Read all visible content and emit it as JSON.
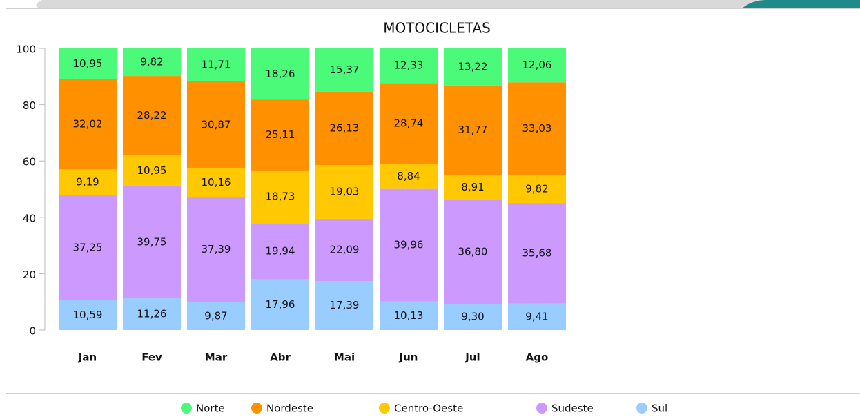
{
  "chart_data": {
    "type": "stacked_bar",
    "title": "MOTOCICLETAS",
    "categories": [
      "Jan",
      "Fev",
      "Mar",
      "Abr",
      "Mai",
      "Jun",
      "Jul",
      "Ago"
    ],
    "ylim": [
      0,
      100
    ],
    "yticks": [
      0,
      20,
      40,
      60,
      80,
      100
    ],
    "series": [
      {
        "name": "Norte",
        "color": "#4cfa7a",
        "values": [
          10.95,
          9.82,
          11.71,
          18.26,
          15.37,
          12.33,
          13.22,
          12.06
        ],
        "value_labels": [
          "10,95",
          "9,82",
          "11,71",
          "18,26",
          "15,37",
          "12,33",
          "13,22",
          "12,06"
        ]
      },
      {
        "name": "Nordeste",
        "color": "#ff9100",
        "values": [
          32.02,
          28.22,
          30.87,
          25.11,
          26.13,
          28.74,
          31.77,
          33.03
        ],
        "value_labels": [
          "32,02",
          "28,22",
          "30,87",
          "25,11",
          "26,13",
          "28,74",
          "31,77",
          "33,03"
        ]
      },
      {
        "name": "Centro-Oeste",
        "color": "#ffc800",
        "values": [
          9.19,
          10.95,
          10.16,
          18.73,
          19.03,
          8.84,
          8.91,
          9.82
        ],
        "value_labels": [
          "9,19",
          "10,95",
          "10,16",
          "18,73",
          "19,03",
          "8,84",
          "8,91",
          "9,82"
        ]
      },
      {
        "name": "Sudeste",
        "color": "#cc99ff",
        "values": [
          37.25,
          39.75,
          37.39,
          19.94,
          22.09,
          39.96,
          36.8,
          35.68
        ],
        "value_labels": [
          "37,25",
          "39,75",
          "37,39",
          "19,94",
          "22,09",
          "39,96",
          "36,80",
          "35,68"
        ]
      },
      {
        "name": "Sul",
        "color": "#99ccff",
        "values": [
          10.59,
          11.26,
          9.87,
          17.96,
          17.39,
          10.13,
          9.3,
          9.41
        ],
        "value_labels": [
          "10,59",
          "11,26",
          "9,87",
          "17,96",
          "17,39",
          "10,13",
          "9,30",
          "9,41"
        ]
      }
    ]
  }
}
